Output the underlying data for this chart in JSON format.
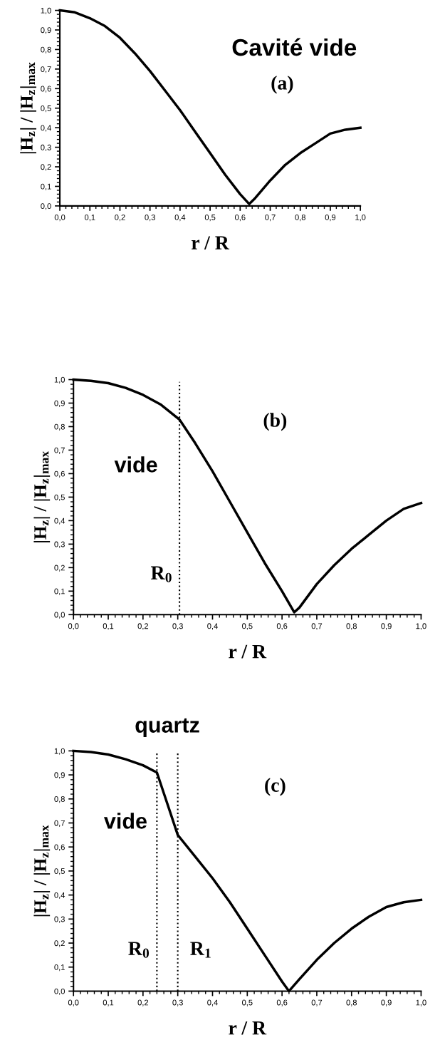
{
  "chart_data": [
    {
      "type": "line",
      "xlabel": "r / R",
      "ylabel": "|H$_{z}$| / |H$_{z}$|$_{max}$",
      "x": [
        0,
        0.05,
        0.1,
        0.15,
        0.2,
        0.25,
        0.3,
        0.35,
        0.4,
        0.45,
        0.5,
        0.55,
        0.6,
        0.63,
        0.65,
        0.7,
        0.75,
        0.8,
        0.85,
        0.9,
        0.95,
        1.0
      ],
      "series": [
        {
          "color": "#000000",
          "values": [
            1.0,
            0.99,
            0.96,
            0.92,
            0.86,
            0.78,
            0.69,
            0.59,
            0.49,
            0.38,
            0.27,
            0.16,
            0.06,
            0.01,
            0.04,
            0.13,
            0.21,
            0.27,
            0.32,
            0.37,
            0.39,
            0.4
          ]
        }
      ],
      "xlim": [
        0,
        1
      ],
      "ylim": [
        0,
        1
      ],
      "xticks": [
        {
          "value": 0,
          "label": "0,0"
        },
        {
          "value": 0.1,
          "label": "0,1"
        },
        {
          "value": 0.2,
          "label": "0,2"
        },
        {
          "value": 0.3,
          "label": "0,3"
        },
        {
          "value": 0.4,
          "label": "0,4"
        },
        {
          "value": 0.5,
          "label": "0,5"
        },
        {
          "value": 0.6,
          "label": "0,6"
        },
        {
          "value": 0.7,
          "label": "0,7"
        },
        {
          "value": 0.8,
          "label": "0,8"
        },
        {
          "value": 0.9,
          "label": "0,9"
        },
        {
          "value": 1.0,
          "label": "1,0"
        }
      ],
      "yticks": [
        {
          "value": 0,
          "label": "0,0"
        },
        {
          "value": 0.1,
          "label": "0,1"
        },
        {
          "value": 0.2,
          "label": "0,2"
        },
        {
          "value": 0.3,
          "label": "0,3"
        },
        {
          "value": 0.4,
          "label": "0,4"
        },
        {
          "value": 0.5,
          "label": "0,5"
        },
        {
          "value": 0.6,
          "label": "0,6"
        },
        {
          "value": 0.7,
          "label": "0,7"
        },
        {
          "value": 0.8,
          "label": "0,8"
        },
        {
          "value": 0.9,
          "label": "0,9"
        },
        {
          "value": 1.0,
          "label": "1,0"
        }
      ],
      "annotations": [
        "Cavité vide",
        "(a)"
      ],
      "grid": false,
      "legend": false,
      "marker": "none",
      "line_style": "solid"
    },
    {
      "type": "line",
      "xlabel": "r / R",
      "ylabel": "|H$_{z}$| / |H$_{z}$|$_{max}$",
      "x": [
        0,
        0.05,
        0.1,
        0.15,
        0.2,
        0.25,
        0.305,
        0.35,
        0.4,
        0.45,
        0.5,
        0.55,
        0.6,
        0.635,
        0.65,
        0.7,
        0.75,
        0.8,
        0.85,
        0.9,
        0.95,
        1.0
      ],
      "series": [
        {
          "color": "#000000",
          "values": [
            1.0,
            0.995,
            0.985,
            0.965,
            0.935,
            0.895,
            0.83,
            0.73,
            0.61,
            0.48,
            0.35,
            0.22,
            0.1,
            0.01,
            0.03,
            0.13,
            0.21,
            0.28,
            0.34,
            0.4,
            0.45,
            0.475
          ]
        }
      ],
      "xlim": [
        0,
        1
      ],
      "ylim": [
        0,
        1
      ],
      "xticks": [
        {
          "value": 0,
          "label": "0,0"
        },
        {
          "value": 0.1,
          "label": "0,1"
        },
        {
          "value": 0.2,
          "label": "0,2"
        },
        {
          "value": 0.3,
          "label": "0,3"
        },
        {
          "value": 0.4,
          "label": "0,4"
        },
        {
          "value": 0.5,
          "label": "0,5"
        },
        {
          "value": 0.6,
          "label": "0,6"
        },
        {
          "value": 0.7,
          "label": "0,7"
        },
        {
          "value": 0.8,
          "label": "0,8"
        },
        {
          "value": 0.9,
          "label": "0,9"
        },
        {
          "value": 1.0,
          "label": "1,0"
        }
      ],
      "yticks": [
        {
          "value": 0,
          "label": "0,0"
        },
        {
          "value": 0.1,
          "label": "0,1"
        },
        {
          "value": 0.2,
          "label": "0,2"
        },
        {
          "value": 0.3,
          "label": "0,3"
        },
        {
          "value": 0.4,
          "label": "0,4"
        },
        {
          "value": 0.5,
          "label": "0,5"
        },
        {
          "value": 0.6,
          "label": "0,6"
        },
        {
          "value": 0.7,
          "label": "0,7"
        },
        {
          "value": 0.8,
          "label": "0,8"
        },
        {
          "value": 0.9,
          "label": "0,9"
        },
        {
          "value": 1.0,
          "label": "1,0"
        }
      ],
      "ref_lines": [
        {
          "axis": "x",
          "value": 0.305,
          "label": "R$_{0}$",
          "color": "#000000",
          "line_style": "dotted"
        }
      ],
      "annotations": [
        "(b)",
        "vide"
      ],
      "grid": false,
      "legend": false,
      "marker": "none",
      "line_style": "solid"
    },
    {
      "type": "line",
      "xlabel": "r / R",
      "ylabel": "|H$_{z}$| / |H$_{z}$|$_{max}$",
      "x": [
        0,
        0.05,
        0.1,
        0.15,
        0.2,
        0.24,
        0.27,
        0.3,
        0.35,
        0.4,
        0.45,
        0.5,
        0.55,
        0.6,
        0.62,
        0.65,
        0.7,
        0.75,
        0.8,
        0.85,
        0.9,
        0.95,
        1.0
      ],
      "series": [
        {
          "color": "#000000",
          "values": [
            1.0,
            0.995,
            0.985,
            0.965,
            0.94,
            0.91,
            0.78,
            0.65,
            0.56,
            0.47,
            0.37,
            0.26,
            0.15,
            0.04,
            0.0,
            0.05,
            0.13,
            0.2,
            0.26,
            0.31,
            0.35,
            0.37,
            0.38
          ]
        }
      ],
      "xlim": [
        0,
        1
      ],
      "ylim": [
        0,
        1
      ],
      "xticks": [
        {
          "value": 0,
          "label": "0,0"
        },
        {
          "value": 0.1,
          "label": "0,1"
        },
        {
          "value": 0.2,
          "label": "0,2"
        },
        {
          "value": 0.3,
          "label": "0,3"
        },
        {
          "value": 0.4,
          "label": "0,4"
        },
        {
          "value": 0.5,
          "label": "0,5"
        },
        {
          "value": 0.6,
          "label": "0,6"
        },
        {
          "value": 0.7,
          "label": "0,7"
        },
        {
          "value": 0.8,
          "label": "0,8"
        },
        {
          "value": 0.9,
          "label": "0,9"
        },
        {
          "value": 1.0,
          "label": "1,0"
        }
      ],
      "yticks": [
        {
          "value": 0,
          "label": "0,0"
        },
        {
          "value": 0.1,
          "label": "0,1"
        },
        {
          "value": 0.2,
          "label": "0,2"
        },
        {
          "value": 0.3,
          "label": "0,3"
        },
        {
          "value": 0.4,
          "label": "0,4"
        },
        {
          "value": 0.5,
          "label": "0,5"
        },
        {
          "value": 0.6,
          "label": "0,6"
        },
        {
          "value": 0.7,
          "label": "0,7"
        },
        {
          "value": 0.8,
          "label": "0,8"
        },
        {
          "value": 0.9,
          "label": "0,9"
        },
        {
          "value": 1.0,
          "label": "1,0"
        }
      ],
      "ref_lines": [
        {
          "axis": "x",
          "value": 0.24,
          "label": "R$_{0}$",
          "color": "#000000",
          "line_style": "dotted"
        },
        {
          "axis": "x",
          "value": 0.3,
          "label": "R$_{1}$",
          "color": "#000000",
          "line_style": "dotted"
        }
      ],
      "annotations": [
        "quartz",
        "(c)",
        "vide"
      ],
      "grid": false,
      "legend": false,
      "marker": "none",
      "line_style": "solid"
    }
  ]
}
